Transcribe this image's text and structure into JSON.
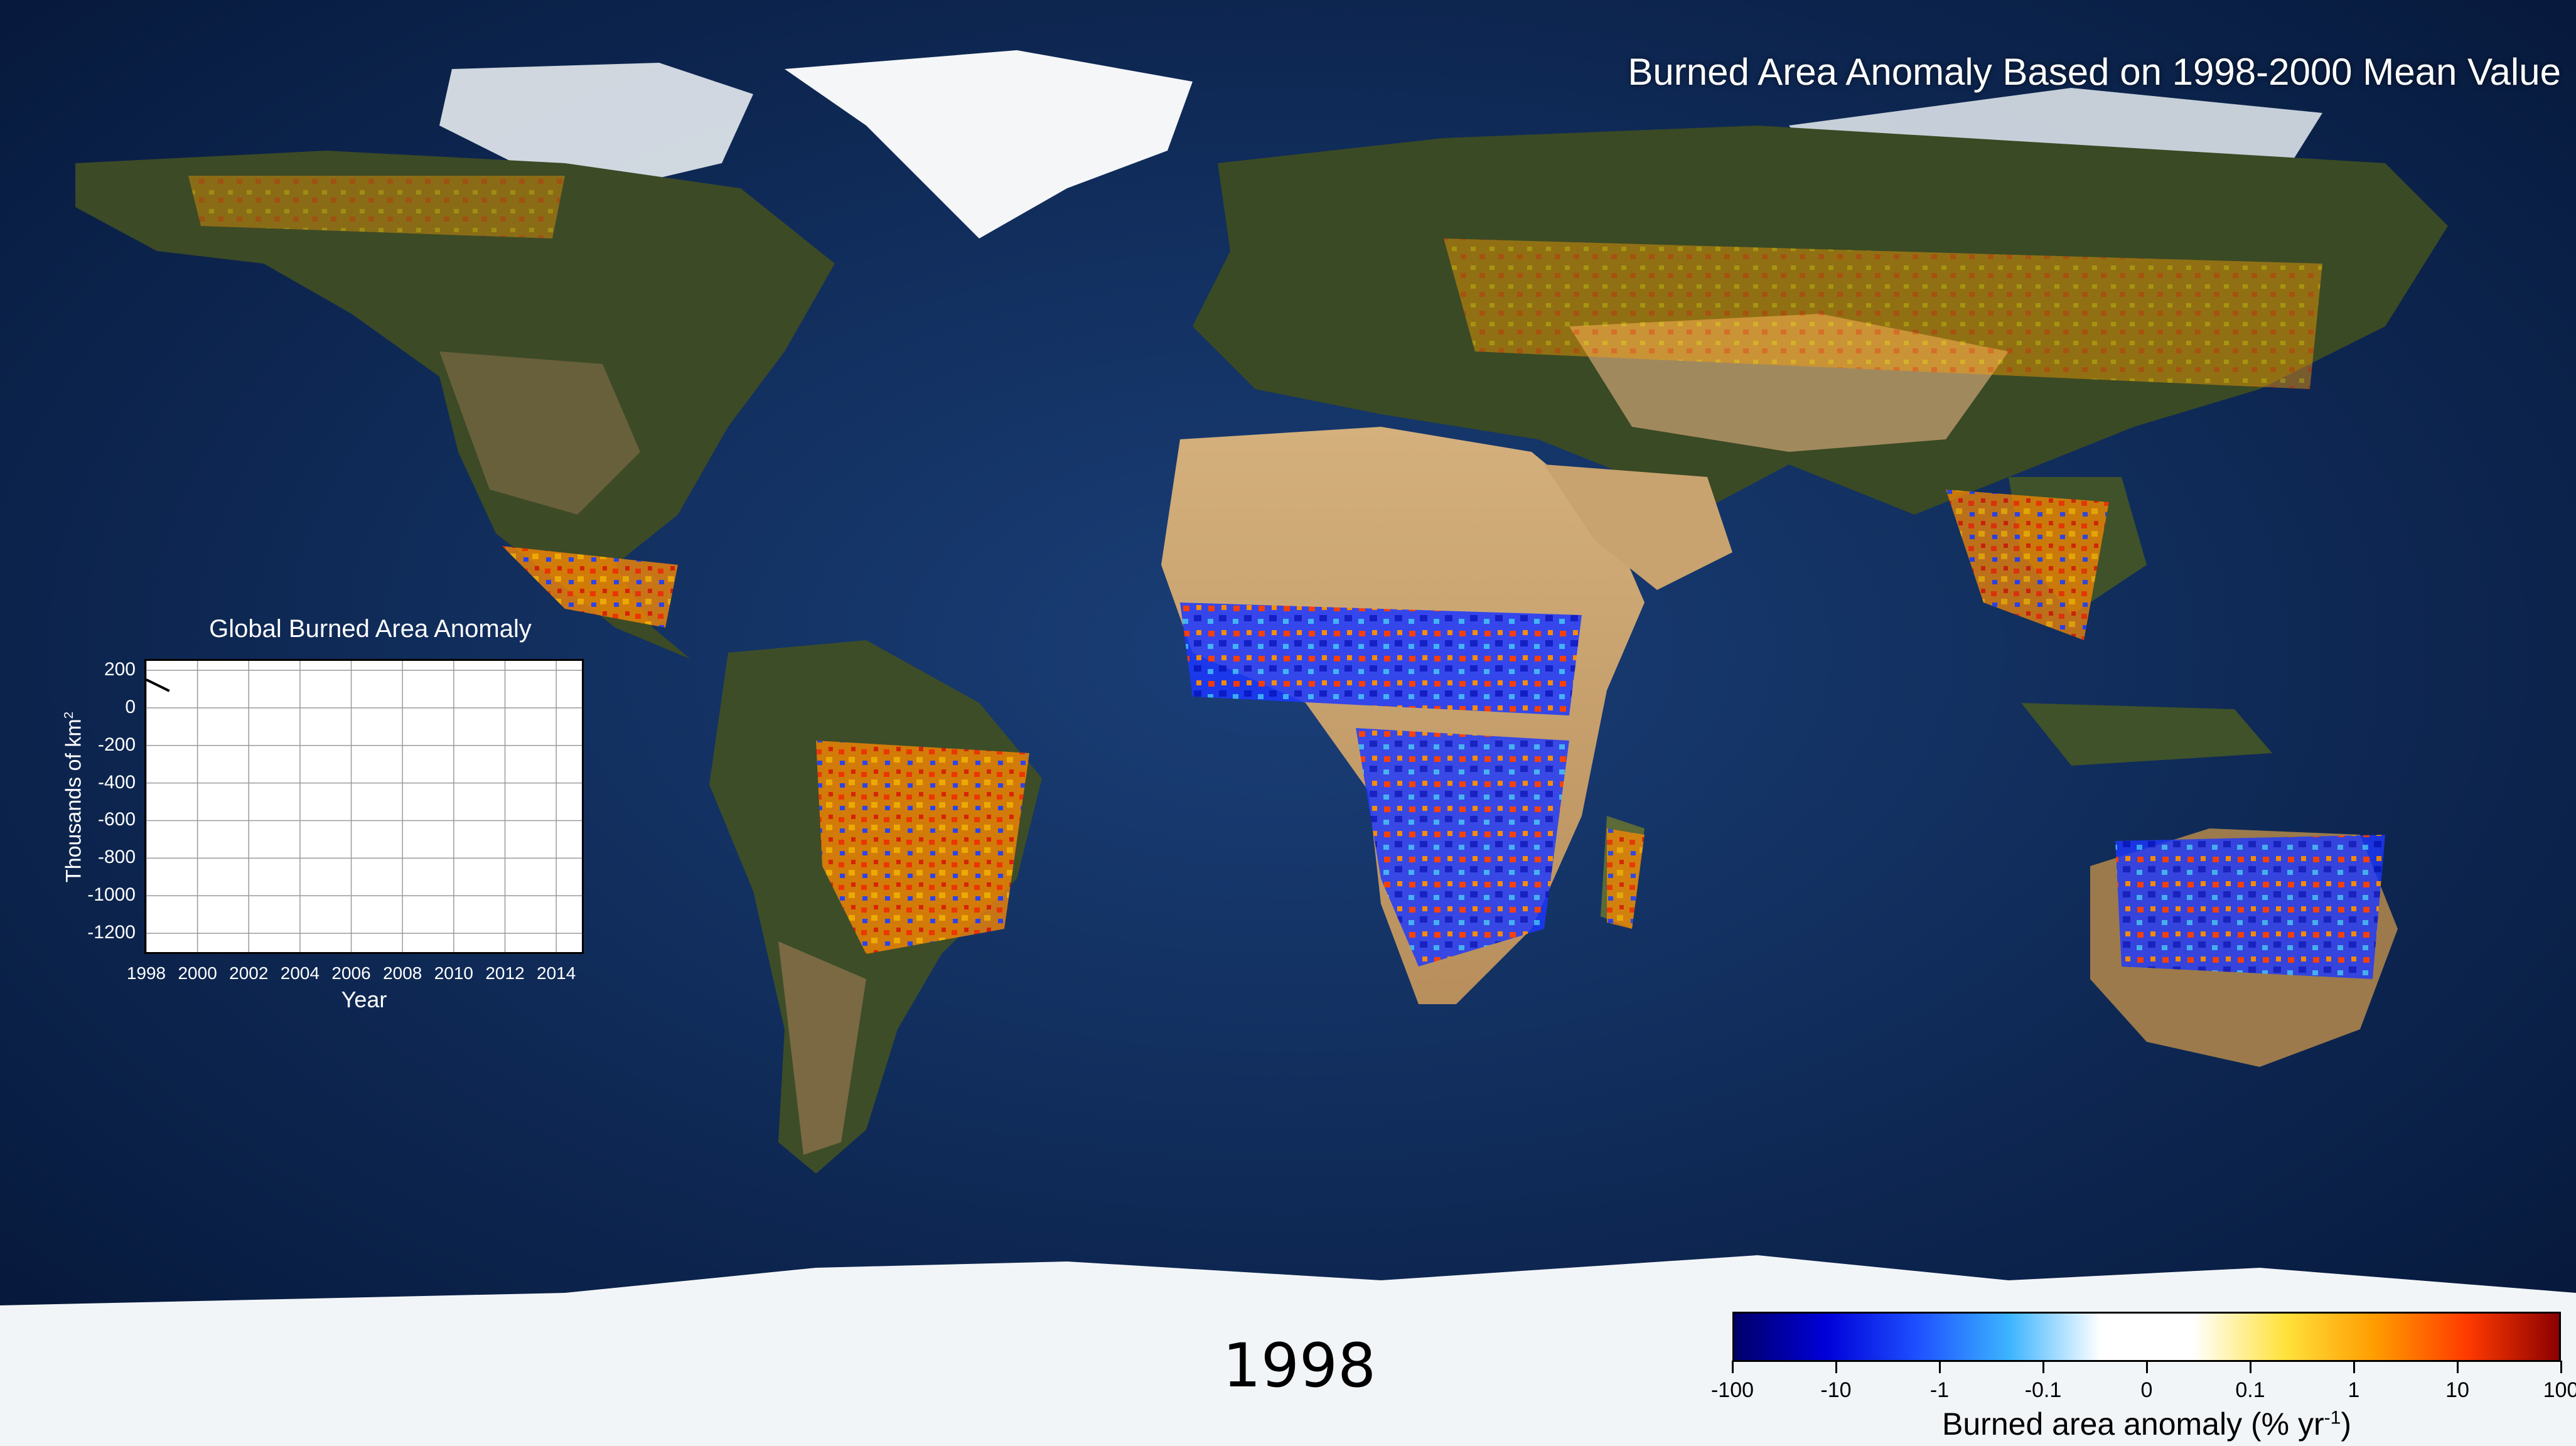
{
  "title": "Burned Area Anomaly Based on 1998-2000 Mean Value",
  "year_label": "1998",
  "map_colors": {
    "ocean_deep": "#06183a",
    "ocean_shelf": "#2f5f9c",
    "land_forest": "#3c4a26",
    "land_desert": "#c9a571",
    "ice": "#f4f6f8"
  },
  "inset": {
    "title": "Global Burned Area Anomaly",
    "ylabel_main": "Thousands of km",
    "ylabel_sup": "2",
    "xlabel": "Year",
    "y_ticks": [
      "200",
      "0",
      "-200",
      "-400",
      "-600",
      "-800",
      "-1000",
      "-1200"
    ],
    "x_ticks": [
      "1998",
      "2000",
      "2002",
      "2004",
      "2006",
      "2008",
      "2010",
      "2012",
      "2014"
    ]
  },
  "chart_data": {
    "type": "line",
    "title": "Global Burned Area Anomaly",
    "xlabel": "Year",
    "ylabel": "Thousands of km²",
    "xlim": [
      1998,
      2015
    ],
    "ylim": [
      -1300,
      250
    ],
    "series": [
      {
        "x": [
          1998.0,
          1998.9
        ],
        "y": [
          150,
          90
        ]
      }
    ],
    "grid": true
  },
  "colorbar": {
    "label_main": "Burned area anomaly (% yr",
    "label_sup": "-1",
    "label_end": ")",
    "ticks": [
      "-100",
      "-10",
      "-1",
      "-0.1",
      "0",
      "0.1",
      "1",
      "10",
      "100"
    ],
    "colors": [
      "#00006a",
      "#0000d8",
      "#1e50ff",
      "#3cb4ff",
      "#ffffff",
      "#ffffff",
      "#ffe23c",
      "#ff9b00",
      "#ff3a00",
      "#8c0000"
    ]
  },
  "legend_regions": {
    "positive": "#ff8c00",
    "negative": "#2040ff",
    "strong_positive": "#ff2000"
  }
}
